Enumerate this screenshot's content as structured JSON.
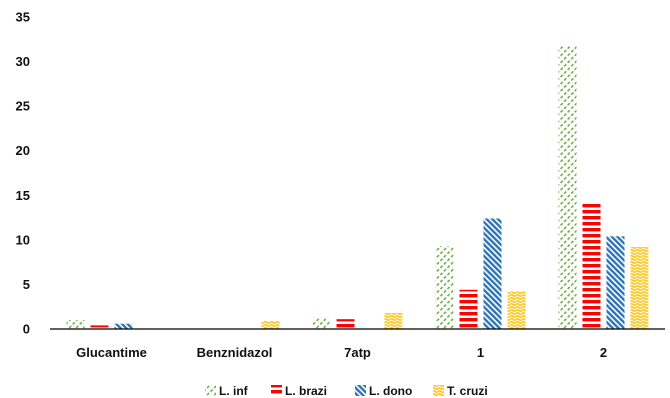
{
  "chart_data": {
    "type": "bar",
    "categories": [
      "Glucantime",
      "Benznidazol",
      "7atp",
      "1",
      "2"
    ],
    "series": [
      {
        "name": "L. inf",
        "values": [
          1.0,
          0,
          1.3,
          9.3,
          31.7
        ],
        "color": "#70ad47",
        "pattern": "diagonal-dash"
      },
      {
        "name": "L. brazi",
        "values": [
          0.4,
          0,
          1.1,
          4.4,
          14.3
        ],
        "color": "#ff0000",
        "pattern": "horizontal-stripes"
      },
      {
        "name": "L. dono",
        "values": [
          0.6,
          0,
          0,
          12.4,
          10.4
        ],
        "color": "#2e75b6",
        "pattern": "diagonal-dense"
      },
      {
        "name": "T. cruzi",
        "values": [
          0,
          0.9,
          1.8,
          4.2,
          9.2
        ],
        "color": "#ffc000",
        "pattern": "wave"
      }
    ],
    "title": "",
    "xlabel": "",
    "ylabel": "",
    "ylim": [
      0,
      35
    ],
    "yticks": [
      0,
      5,
      10,
      15,
      20,
      25,
      30,
      35
    ],
    "grid": false,
    "legend_position": "bottom"
  }
}
